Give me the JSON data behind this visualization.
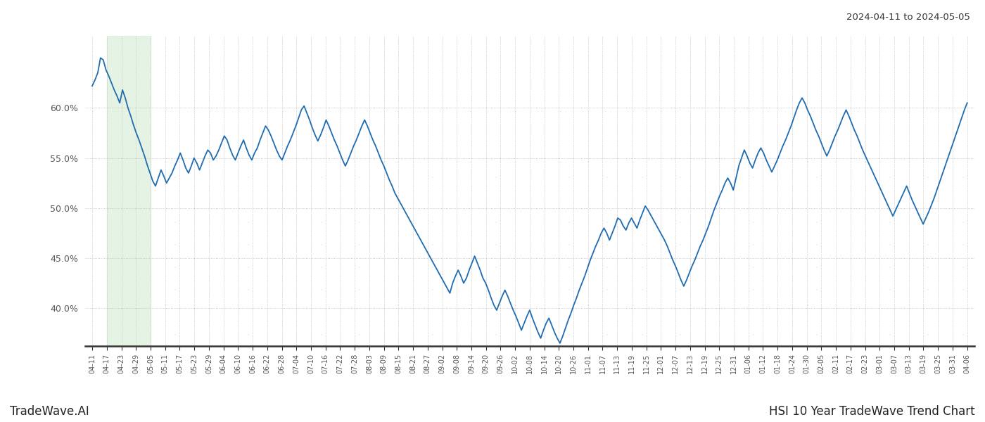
{
  "title_right": "2024-04-11 to 2024-05-05",
  "footer_left": "TradeWave.AI",
  "footer_right": "HSI 10 Year TradeWave Trend Chart",
  "line_color": "#1f6cb0",
  "line_width": 1.3,
  "shade_color": "#d8edd8",
  "shade_alpha": 0.65,
  "background_color": "#ffffff",
  "grid_color": "#bbbbbb",
  "ylim": [
    0.362,
    0.672
  ],
  "yticks": [
    0.4,
    0.45,
    0.5,
    0.55,
    0.6
  ],
  "ytick_labels": [
    "40.0%",
    "45.0%",
    "50.0%",
    "55.0%",
    "60.0%"
  ],
  "shade_xstart": 1,
  "shade_xend": 4,
  "xtick_labels": [
    "04-11",
    "04-17",
    "04-23",
    "04-29",
    "05-05",
    "05-11",
    "05-17",
    "05-23",
    "05-29",
    "06-04",
    "06-10",
    "06-16",
    "06-22",
    "06-28",
    "07-04",
    "07-10",
    "07-16",
    "07-22",
    "07-28",
    "08-03",
    "08-09",
    "08-15",
    "08-21",
    "08-27",
    "09-02",
    "09-08",
    "09-14",
    "09-20",
    "09-26",
    "10-02",
    "10-08",
    "10-14",
    "10-20",
    "10-26",
    "11-01",
    "11-07",
    "11-13",
    "11-19",
    "11-25",
    "12-01",
    "12-07",
    "12-13",
    "12-19",
    "12-25",
    "12-31",
    "01-06",
    "01-12",
    "01-18",
    "01-24",
    "01-30",
    "02-05",
    "02-11",
    "02-17",
    "02-23",
    "03-01",
    "03-07",
    "03-13",
    "03-19",
    "03-25",
    "03-31",
    "04-06"
  ],
  "values": [
    0.622,
    0.628,
    0.635,
    0.65,
    0.648,
    0.638,
    0.632,
    0.625,
    0.618,
    0.612,
    0.605,
    0.618,
    0.61,
    0.6,
    0.592,
    0.583,
    0.575,
    0.568,
    0.56,
    0.552,
    0.543,
    0.535,
    0.527,
    0.522,
    0.53,
    0.538,
    0.532,
    0.525,
    0.53,
    0.535,
    0.542,
    0.548,
    0.555,
    0.548,
    0.54,
    0.535,
    0.542,
    0.55,
    0.545,
    0.538,
    0.545,
    0.552,
    0.558,
    0.555,
    0.548,
    0.552,
    0.558,
    0.565,
    0.572,
    0.568,
    0.56,
    0.553,
    0.548,
    0.555,
    0.562,
    0.568,
    0.56,
    0.553,
    0.548,
    0.555,
    0.56,
    0.568,
    0.575,
    0.582,
    0.578,
    0.572,
    0.565,
    0.558,
    0.552,
    0.548,
    0.555,
    0.562,
    0.568,
    0.575,
    0.582,
    0.59,
    0.598,
    0.602,
    0.595,
    0.588,
    0.58,
    0.573,
    0.567,
    0.573,
    0.58,
    0.588,
    0.582,
    0.575,
    0.568,
    0.562,
    0.555,
    0.548,
    0.542,
    0.548,
    0.555,
    0.562,
    0.568,
    0.575,
    0.582,
    0.588,
    0.582,
    0.575,
    0.568,
    0.562,
    0.555,
    0.548,
    0.542,
    0.535,
    0.528,
    0.522,
    0.515,
    0.51,
    0.505,
    0.5,
    0.495,
    0.49,
    0.485,
    0.48,
    0.475,
    0.47,
    0.465,
    0.46,
    0.455,
    0.45,
    0.445,
    0.44,
    0.435,
    0.43,
    0.425,
    0.42,
    0.415,
    0.425,
    0.432,
    0.438,
    0.432,
    0.425,
    0.43,
    0.438,
    0.445,
    0.452,
    0.445,
    0.438,
    0.43,
    0.425,
    0.418,
    0.41,
    0.403,
    0.398,
    0.405,
    0.412,
    0.418,
    0.412,
    0.405,
    0.398,
    0.392,
    0.385,
    0.378,
    0.385,
    0.392,
    0.398,
    0.39,
    0.383,
    0.376,
    0.37,
    0.378,
    0.385,
    0.39,
    0.383,
    0.376,
    0.37,
    0.365,
    0.372,
    0.38,
    0.388,
    0.395,
    0.403,
    0.41,
    0.418,
    0.425,
    0.432,
    0.44,
    0.448,
    0.455,
    0.462,
    0.468,
    0.475,
    0.48,
    0.475,
    0.468,
    0.475,
    0.482,
    0.49,
    0.488,
    0.482,
    0.478,
    0.485,
    0.49,
    0.485,
    0.48,
    0.488,
    0.495,
    0.502,
    0.498,
    0.493,
    0.488,
    0.483,
    0.478,
    0.473,
    0.468,
    0.462,
    0.455,
    0.448,
    0.442,
    0.435,
    0.428,
    0.422,
    0.428,
    0.435,
    0.442,
    0.448,
    0.455,
    0.462,
    0.468,
    0.475,
    0.482,
    0.49,
    0.498,
    0.505,
    0.512,
    0.518,
    0.525,
    0.53,
    0.525,
    0.518,
    0.53,
    0.542,
    0.55,
    0.558,
    0.552,
    0.545,
    0.54,
    0.548,
    0.555,
    0.56,
    0.555,
    0.548,
    0.542,
    0.536,
    0.542,
    0.548,
    0.555,
    0.562,
    0.568,
    0.575,
    0.582,
    0.59,
    0.598,
    0.605,
    0.61,
    0.605,
    0.598,
    0.592,
    0.585,
    0.578,
    0.572,
    0.565,
    0.558,
    0.552,
    0.558,
    0.565,
    0.572,
    0.578,
    0.585,
    0.592,
    0.598,
    0.592,
    0.585,
    0.578,
    0.572,
    0.565,
    0.558,
    0.552,
    0.546,
    0.54,
    0.534,
    0.528,
    0.522,
    0.516,
    0.51,
    0.504,
    0.498,
    0.492,
    0.498,
    0.504,
    0.51,
    0.516,
    0.522,
    0.515,
    0.508,
    0.502,
    0.496,
    0.49,
    0.484,
    0.49,
    0.496,
    0.503,
    0.51,
    0.518,
    0.526,
    0.534,
    0.542,
    0.55,
    0.558,
    0.566,
    0.574,
    0.582,
    0.59,
    0.598,
    0.605
  ]
}
